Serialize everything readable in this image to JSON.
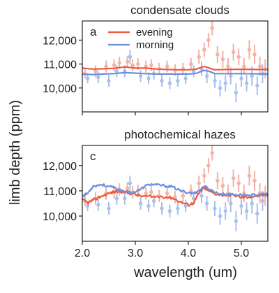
{
  "figure": {
    "ylabel": "limb depth (ppm)",
    "xlabel": "wavelength (um)",
    "colors": {
      "evening": "#f0583a",
      "morning": "#6a8fe0",
      "evening_data": "#f2b2a6",
      "morning_data": "#a9c0ec"
    }
  },
  "chart_data": [
    {
      "type": "line",
      "title": "condensate clouds",
      "panel_label": "a",
      "xlim": [
        2.0,
        5.5
      ],
      "ylim": [
        9000,
        12800
      ],
      "xticks": [
        "2.0",
        "3.0",
        "4.0",
        "5.0"
      ],
      "yticks": [
        "10,000",
        "11,000",
        "12,000"
      ],
      "ytick_values": [
        10000,
        11000,
        12000
      ],
      "legend": [
        "evening",
        "morning"
      ],
      "legend_position": "top-center",
      "series": [
        {
          "name": "evening",
          "x": [
            2.0,
            2.2,
            2.4,
            2.6,
            2.8,
            3.0,
            3.2,
            3.4,
            3.6,
            3.8,
            4.0,
            4.15,
            4.3,
            4.4,
            4.5,
            4.7,
            4.9,
            5.1,
            5.3,
            5.5
          ],
          "y": [
            10830,
            10790,
            10800,
            10820,
            10880,
            10830,
            10830,
            10790,
            10770,
            10760,
            10760,
            10790,
            10900,
            10830,
            10760,
            10770,
            10780,
            10780,
            10770,
            10770
          ]
        },
        {
          "name": "morning",
          "x": [
            2.0,
            2.2,
            2.4,
            2.6,
            2.8,
            3.0,
            3.2,
            3.4,
            3.6,
            3.8,
            4.0,
            4.15,
            4.3,
            4.4,
            4.5,
            4.7,
            4.9,
            5.1,
            5.3,
            5.5
          ],
          "y": [
            10580,
            10560,
            10580,
            10600,
            10640,
            10620,
            10600,
            10580,
            10580,
            10580,
            10580,
            10610,
            10740,
            10690,
            10600,
            10600,
            10600,
            10600,
            10590,
            10580
          ]
        }
      ],
      "observations": {
        "evening": {
          "x": [
            2.05,
            2.25,
            2.45,
            2.6,
            2.7,
            2.85,
            2.95,
            3.05,
            3.2,
            3.3,
            3.45,
            3.6,
            3.75,
            3.9,
            4.05,
            4.2,
            4.3,
            4.38,
            4.45,
            4.55,
            4.65,
            4.75,
            4.85,
            4.95,
            5.05,
            5.15,
            5.25,
            5.35,
            5.45
          ],
          "y": [
            10600,
            10700,
            10900,
            10950,
            11050,
            11100,
            10950,
            11000,
            10900,
            10950,
            10800,
            10900,
            10750,
            10800,
            11000,
            11300,
            11600,
            12000,
            12500,
            11400,
            11200,
            10900,
            11500,
            11300,
            10900,
            11600,
            11400,
            10900,
            10800
          ],
          "err": [
            200,
            250,
            250,
            250,
            250,
            250,
            250,
            250,
            250,
            250,
            250,
            250,
            250,
            250,
            250,
            300,
            300,
            300,
            300,
            350,
            350,
            350,
            350,
            350,
            350,
            400,
            400,
            400,
            400
          ]
        },
        "morning": {
          "x": [
            2.1,
            2.3,
            2.5,
            2.65,
            2.8,
            2.9,
            3.1,
            3.25,
            3.35,
            3.5,
            3.65,
            3.8,
            3.95,
            4.1,
            4.25,
            4.35,
            4.5,
            4.6,
            4.7,
            4.8,
            4.9,
            5.0,
            5.1,
            5.2,
            5.3,
            5.4
          ],
          "y": [
            10400,
            10450,
            10300,
            10700,
            10700,
            11300,
            10500,
            10400,
            10600,
            10300,
            10200,
            10300,
            10400,
            10700,
            10800,
            10500,
            10300,
            10000,
            10200,
            10500,
            9800,
            10400,
            10200,
            10500,
            10100,
            10600
          ],
          "err": [
            200,
            250,
            250,
            250,
            250,
            300,
            250,
            250,
            250,
            250,
            250,
            250,
            250,
            250,
            300,
            300,
            300,
            350,
            350,
            350,
            400,
            350,
            350,
            400,
            400,
            400
          ]
        }
      }
    },
    {
      "type": "line",
      "title": "photochemical hazes",
      "panel_label": "c",
      "xlim": [
        2.0,
        5.5
      ],
      "ylim": [
        9000,
        12800
      ],
      "xticks": [
        "2.0",
        "3.0",
        "4.0",
        "5.0"
      ],
      "yticks": [
        "10,000",
        "11,000",
        "12,000"
      ],
      "ytick_values": [
        10000,
        11000,
        12000
      ],
      "series": [
        {
          "name": "evening",
          "x": [
            2.0,
            2.1,
            2.2,
            2.35,
            2.5,
            2.65,
            2.8,
            2.95,
            3.1,
            3.3,
            3.5,
            3.7,
            3.85,
            4.0,
            4.1,
            4.2,
            4.3,
            4.4,
            4.55,
            4.7,
            4.85,
            5.0,
            5.15,
            5.3,
            5.45,
            5.5
          ],
          "y": [
            10650,
            10520,
            10620,
            10780,
            10900,
            10980,
            10960,
            10880,
            10800,
            10760,
            10780,
            10720,
            10560,
            10440,
            10520,
            10900,
            11120,
            10980,
            10860,
            10830,
            10840,
            10740,
            10760,
            10800,
            10840,
            10860
          ],
          "noise": 60
        },
        {
          "name": "morning",
          "x": [
            2.0,
            2.1,
            2.2,
            2.35,
            2.5,
            2.65,
            2.8,
            2.95,
            3.1,
            3.25,
            3.4,
            3.55,
            3.7,
            3.85,
            4.0,
            4.1,
            4.2,
            4.3,
            4.4,
            4.55,
            4.7,
            4.85,
            5.0,
            5.15,
            5.3,
            5.45,
            5.5
          ],
          "y": [
            10800,
            10900,
            11180,
            11250,
            11180,
            11080,
            10980,
            10920,
            11060,
            11260,
            11240,
            11200,
            11160,
            11000,
            10930,
            10900,
            11000,
            11180,
            11060,
            10900,
            10860,
            10850,
            10840,
            10820,
            10840,
            10860,
            10880
          ],
          "noise": 50
        }
      ],
      "observations": "same as panel a"
    }
  ]
}
